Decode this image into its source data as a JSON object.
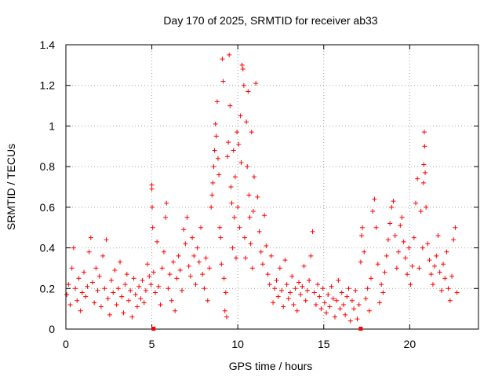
{
  "chart_data": {
    "type": "scatter",
    "title": "Day 170 of 2025, SRMTID for receiver ab33",
    "xlabel": "GPS time / hours",
    "ylabel": "SRMTID / TECUs",
    "xlim": [
      0,
      24
    ],
    "ylim": [
      0,
      1.4
    ],
    "grid": true,
    "marker": "+",
    "color": "#ff0000",
    "x_ticks": [
      0,
      5,
      10,
      15,
      20
    ],
    "x_tick_labels": [
      "0",
      "5",
      "10",
      "15",
      "20"
    ],
    "y_ticks": [
      0,
      0.2,
      0.4,
      0.6,
      0.8,
      1.0,
      1.2,
      1.4
    ],
    "y_tick_labels": [
      "0",
      "0.2",
      "0.4",
      "0.6",
      "0.8",
      "1",
      "1.2",
      "1.4"
    ],
    "series": [
      {
        "name": "SRMTID",
        "points": [
          [
            0.05,
            0.17
          ],
          [
            0.15,
            0.22
          ],
          [
            0.25,
            0.12
          ],
          [
            0.35,
            0.3
          ],
          [
            0.45,
            0.4
          ],
          [
            0.55,
            0.2
          ],
          [
            0.65,
            0.14
          ],
          [
            0.75,
            0.25
          ],
          [
            0.85,
            0.09
          ],
          [
            0.95,
            0.18
          ],
          [
            1.05,
            0.28
          ],
          [
            1.15,
            0.16
          ],
          [
            1.25,
            0.21
          ],
          [
            1.35,
            0.38
          ],
          [
            1.45,
            0.45
          ],
          [
            1.55,
            0.23
          ],
          [
            1.65,
            0.13
          ],
          [
            1.75,
            0.3
          ],
          [
            1.85,
            0.19
          ],
          [
            1.95,
            0.26
          ],
          [
            2.05,
            0.11
          ],
          [
            2.15,
            0.36
          ],
          [
            2.25,
            0.2
          ],
          [
            2.35,
            0.44
          ],
          [
            2.45,
            0.15
          ],
          [
            2.55,
            0.07
          ],
          [
            2.65,
            0.24
          ],
          [
            2.75,
            0.18
          ],
          [
            2.85,
            0.29
          ],
          [
            2.95,
            0.12
          ],
          [
            3.05,
            0.2
          ],
          [
            3.15,
            0.33
          ],
          [
            3.25,
            0.16
          ],
          [
            3.35,
            0.08
          ],
          [
            3.45,
            0.22
          ],
          [
            3.55,
            0.27
          ],
          [
            3.65,
            0.14
          ],
          [
            3.75,
            0.19
          ],
          [
            3.85,
            0.06
          ],
          [
            3.95,
            0.25
          ],
          [
            4.05,
            0.17
          ],
          [
            4.15,
            0.11
          ],
          [
            4.25,
            0.21
          ],
          [
            4.35,
            0.15
          ],
          [
            4.45,
            0.24
          ],
          [
            4.55,
            0.13
          ],
          [
            4.65,
            0.19
          ],
          [
            4.75,
            0.32
          ],
          [
            4.85,
            0.26
          ],
          [
            4.95,
            0.22
          ],
          [
            5.0,
            0.71
          ],
          [
            5.0,
            0.69
          ],
          [
            5.02,
            0.6
          ],
          [
            5.05,
            0.5
          ],
          [
            5.1,
            0.28
          ],
          [
            5.2,
            0.18
          ],
          [
            5.3,
            0.43
          ],
          [
            5.4,
            0.21
          ],
          [
            5.5,
            0.12
          ],
          [
            5.6,
            0.3
          ],
          [
            5.7,
            0.38
          ],
          [
            5.8,
            0.55
          ],
          [
            5.85,
            0.62
          ],
          [
            5.95,
            0.2
          ],
          [
            6.05,
            0.27
          ],
          [
            6.15,
            0.14
          ],
          [
            6.25,
            0.33
          ],
          [
            6.35,
            0.09
          ],
          [
            6.45,
            0.25
          ],
          [
            6.55,
            0.36
          ],
          [
            6.65,
            0.29
          ],
          [
            6.75,
            0.19
          ],
          [
            6.85,
            0.49
          ],
          [
            6.95,
            0.42
          ],
          [
            7.05,
            0.55
          ],
          [
            7.15,
            0.31
          ],
          [
            7.25,
            0.26
          ],
          [
            7.35,
            0.45
          ],
          [
            7.45,
            0.36
          ],
          [
            7.55,
            0.22
          ],
          [
            7.65,
            0.4
          ],
          [
            7.75,
            0.33
          ],
          [
            7.85,
            0.5
          ],
          [
            7.95,
            0.27
          ],
          [
            8.05,
            0.2
          ],
          [
            8.15,
            0.35
          ],
          [
            8.25,
            0.14
          ],
          [
            8.35,
            0.3
          ],
          [
            8.45,
            0.6
          ],
          [
            8.5,
            0.66
          ],
          [
            8.55,
            0.72
          ],
          [
            8.6,
            0.8
          ],
          [
            8.65,
            0.88
          ],
          [
            8.7,
            1.01
          ],
          [
            8.75,
            0.95
          ],
          [
            8.8,
            1.12
          ],
          [
            8.85,
            0.84
          ],
          [
            8.9,
            0.76
          ],
          [
            8.95,
            0.5
          ],
          [
            9.0,
            0.45
          ],
          [
            9.05,
            0.32
          ],
          [
            9.1,
            1.33
          ],
          [
            9.15,
            1.22
          ],
          [
            9.2,
            0.25
          ],
          [
            9.25,
            0.09
          ],
          [
            9.3,
            0.18
          ],
          [
            9.35,
            0.06
          ],
          [
            9.4,
            0.85
          ],
          [
            9.45,
            0.92
          ],
          [
            9.5,
            1.35
          ],
          [
            9.55,
            1.1
          ],
          [
            9.6,
            0.7
          ],
          [
            9.65,
            0.62
          ],
          [
            9.7,
            0.4
          ],
          [
            9.75,
            0.88
          ],
          [
            9.8,
            0.55
          ],
          [
            9.85,
            0.75
          ],
          [
            9.9,
            0.35
          ],
          [
            9.95,
            0.97
          ],
          [
            10.0,
            0.6
          ],
          [
            10.05,
            0.91
          ],
          [
            10.1,
            0.5
          ],
          [
            10.15,
            1.05
          ],
          [
            10.2,
            0.82
          ],
          [
            10.25,
            1.3
          ],
          [
            10.3,
            1.28
          ],
          [
            10.35,
            1.2
          ],
          [
            10.4,
            0.45
          ],
          [
            10.45,
            0.35
          ],
          [
            10.5,
            1.02
          ],
          [
            10.55,
            0.8
          ],
          [
            10.6,
            1.17
          ],
          [
            10.65,
            0.66
          ],
          [
            10.7,
            0.55
          ],
          [
            10.75,
            0.42
          ],
          [
            10.8,
            0.97
          ],
          [
            10.85,
            0.3
          ],
          [
            10.9,
            0.58
          ],
          [
            10.95,
            0.75
          ],
          [
            11.05,
            1.21
          ],
          [
            11.15,
            0.65
          ],
          [
            11.25,
            0.48
          ],
          [
            11.35,
            0.38
          ],
          [
            11.45,
            0.32
          ],
          [
            11.55,
            0.56
          ],
          [
            11.65,
            0.41
          ],
          [
            11.75,
            0.27
          ],
          [
            11.85,
            0.22
          ],
          [
            11.95,
            0.36
          ],
          [
            12.05,
            0.13
          ],
          [
            12.15,
            0.2
          ],
          [
            12.25,
            0.24
          ],
          [
            12.35,
            0.16
          ],
          [
            12.45,
            0.3
          ],
          [
            12.55,
            0.19
          ],
          [
            12.65,
            0.11
          ],
          [
            12.75,
            0.34
          ],
          [
            12.85,
            0.22
          ],
          [
            12.95,
            0.15
          ],
          [
            13.05,
            0.18
          ],
          [
            13.15,
            0.26
          ],
          [
            13.25,
            0.12
          ],
          [
            13.35,
            0.2
          ],
          [
            13.45,
            0.09
          ],
          [
            13.55,
            0.23
          ],
          [
            13.65,
            0.17
          ],
          [
            13.75,
            0.21
          ],
          [
            13.85,
            0.31
          ],
          [
            13.95,
            0.14
          ],
          [
            14.05,
            0.19
          ],
          [
            14.15,
            0.24
          ],
          [
            14.25,
            0.36
          ],
          [
            14.35,
            0.48
          ],
          [
            14.45,
            0.18
          ],
          [
            14.55,
            0.12
          ],
          [
            14.65,
            0.22
          ],
          [
            14.75,
            0.16
          ],
          [
            14.85,
            0.1
          ],
          [
            14.95,
            0.2
          ],
          [
            15.05,
            0.13
          ],
          [
            15.15,
            0.08
          ],
          [
            15.25,
            0.17
          ],
          [
            15.35,
            0.11
          ],
          [
            15.45,
            0.21
          ],
          [
            15.55,
            0.15
          ],
          [
            15.65,
            0.06
          ],
          [
            15.75,
            0.14
          ],
          [
            15.85,
            0.24
          ],
          [
            15.95,
            0.1
          ],
          [
            16.05,
            0.18
          ],
          [
            16.15,
            0.12
          ],
          [
            16.25,
            0.07
          ],
          [
            16.35,
            0.16
          ],
          [
            16.45,
            0.2
          ],
          [
            16.55,
            0.04
          ],
          [
            16.65,
            0.14
          ],
          [
            16.75,
            0.1
          ],
          [
            16.85,
            0.19
          ],
          [
            16.95,
            0.05
          ],
          [
            17.05,
            0.12
          ],
          [
            17.15,
            0.33
          ],
          [
            17.2,
            0.46
          ],
          [
            17.25,
            0.5
          ],
          [
            17.35,
            0.38
          ],
          [
            17.45,
            0.15
          ],
          [
            17.55,
            0.2
          ],
          [
            17.65,
            0.09
          ],
          [
            17.75,
            0.25
          ],
          [
            17.85,
            0.58
          ],
          [
            17.95,
            0.64
          ],
          [
            18.05,
            0.5
          ],
          [
            18.15,
            0.32
          ],
          [
            18.25,
            0.13
          ],
          [
            18.35,
            0.22
          ],
          [
            18.45,
            0.18
          ],
          [
            18.55,
            0.28
          ],
          [
            18.65,
            0.36
          ],
          [
            18.75,
            0.44
          ],
          [
            18.85,
            0.52
          ],
          [
            18.95,
            0.6
          ],
          [
            19.05,
            0.63
          ],
          [
            19.15,
            0.46
          ],
          [
            19.25,
            0.3
          ],
          [
            19.35,
            0.38
          ],
          [
            19.45,
            0.51
          ],
          [
            19.55,
            0.55
          ],
          [
            19.65,
            0.43
          ],
          [
            19.75,
            0.35
          ],
          [
            19.85,
            0.27
          ],
          [
            19.95,
            0.4
          ],
          [
            20.05,
            0.22
          ],
          [
            20.15,
            0.31
          ],
          [
            20.25,
            0.45
          ],
          [
            20.35,
            0.62
          ],
          [
            20.45,
            0.74
          ],
          [
            20.55,
            0.3
          ],
          [
            20.65,
            0.58
          ],
          [
            20.75,
            0.4
          ],
          [
            20.8,
            0.72
          ],
          [
            20.82,
            0.81
          ],
          [
            20.85,
            0.97
          ],
          [
            20.87,
            0.9
          ],
          [
            20.9,
            0.77
          ],
          [
            20.95,
            0.6
          ],
          [
            21.05,
            0.42
          ],
          [
            21.15,
            0.34
          ],
          [
            21.25,
            0.27
          ],
          [
            21.35,
            0.22
          ],
          [
            21.45,
            0.31
          ],
          [
            21.55,
            0.36
          ],
          [
            21.65,
            0.46
          ],
          [
            21.75,
            0.28
          ],
          [
            21.85,
            0.19
          ],
          [
            21.95,
            0.32
          ],
          [
            22.05,
            0.25
          ],
          [
            22.15,
            0.38
          ],
          [
            22.25,
            0.2
          ],
          [
            22.35,
            0.14
          ],
          [
            22.45,
            0.26
          ],
          [
            22.55,
            0.44
          ],
          [
            22.65,
            0.5
          ],
          [
            22.75,
            0.18
          ]
        ]
      }
    ],
    "x_axis_markers": [
      5.1,
      17.15
    ]
  }
}
